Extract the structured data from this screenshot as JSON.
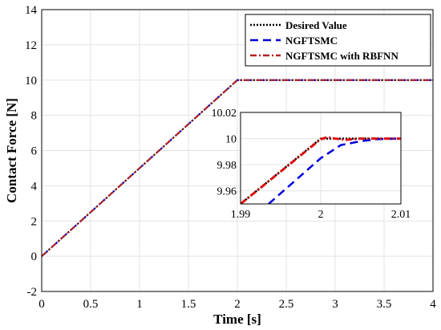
{
  "chart_data": {
    "type": "line",
    "title": "",
    "xlabel": "Time [s]",
    "ylabel": "Contact Force [N]",
    "xlim": [
      0,
      4
    ],
    "ylim": [
      -2,
      14
    ],
    "x_ticks": [
      "0",
      "0.5",
      "1",
      "1.5",
      "2",
      "2.5",
      "3",
      "3.5",
      "4"
    ],
    "y_ticks": [
      "-2",
      "0",
      "2",
      "4",
      "6",
      "8",
      "10",
      "12",
      "14"
    ],
    "grid": true,
    "legend_position": "top-right",
    "series": [
      {
        "name": "Desired Value",
        "color": "#000000",
        "style": "dotted",
        "x": [
          0,
          2,
          4
        ],
        "y": [
          0,
          10,
          10
        ]
      },
      {
        "name": "NGFTSMC",
        "color": "#0000dd",
        "style": "dashed",
        "x": [
          0,
          2,
          4
        ],
        "y": [
          0,
          10,
          10
        ]
      },
      {
        "name": "NGFTSMC with RBFNN",
        "color": "#b22222",
        "style": "dashdot",
        "x": [
          0,
          2,
          4
        ],
        "y": [
          0,
          10,
          10
        ]
      }
    ],
    "inset": {
      "xlim": [
        1.99,
        2.01
      ],
      "ylim": [
        9.95,
        10.02
      ],
      "x_ticks": [
        "1.99",
        "2",
        "2.01"
      ],
      "y_ticks": [
        "9.96",
        "9.98",
        "10",
        "10.02"
      ],
      "series": [
        {
          "name": "Desired Value",
          "color": "#000000",
          "style": "dotted",
          "x": [
            1.99,
            2.0,
            2.01
          ],
          "y": [
            9.95,
            10.0,
            10.0
          ]
        },
        {
          "name": "NGFTSMC",
          "color": "#0000dd",
          "style": "dashed",
          "x": [
            1.9935,
            2.0,
            2.0025,
            2.005,
            2.007,
            2.01
          ],
          "y": [
            9.95,
            9.985,
            9.995,
            9.998,
            9.9995,
            10.0
          ]
        },
        {
          "name": "NGFTSMC with RBFNN",
          "color": "#e01010",
          "style": "dashdot",
          "x": [
            1.99,
            2.0,
            2.0008,
            2.0018,
            2.003,
            2.005,
            2.01
          ],
          "y": [
            9.95,
            9.9995,
            10.001,
            10.0,
            9.999,
            10.0,
            10.0
          ]
        }
      ]
    }
  }
}
